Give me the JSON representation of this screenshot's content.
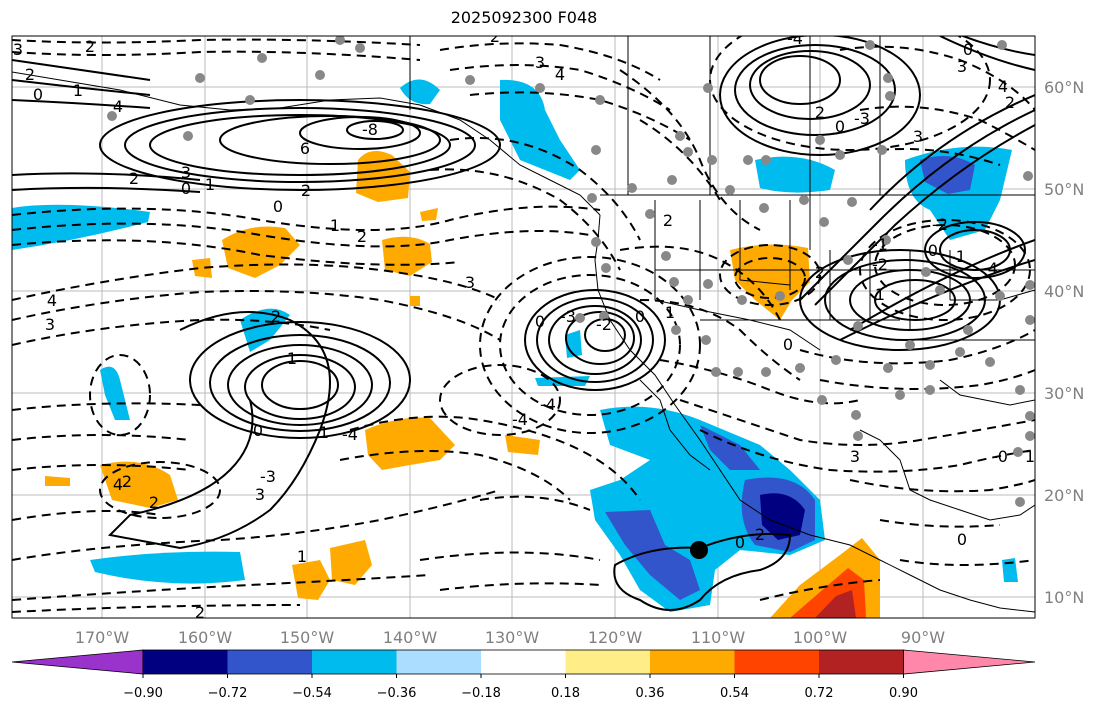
{
  "title": "2025092300 F048",
  "map": {
    "lon_ticks": [
      "170°W",
      "160°W",
      "150°W",
      "140°W",
      "130°W",
      "120°W",
      "110°W",
      "100°W",
      "90°W"
    ],
    "lat_ticks": [
      "60°N",
      "50°N",
      "40°N",
      "30°N",
      "20°N",
      "10°N"
    ],
    "contour_labels": [
      "3",
      "2",
      "0",
      "2",
      "1",
      "4",
      "6",
      "-8",
      "2",
      "3",
      "0",
      "1",
      "2",
      "0",
      "1",
      "2",
      "4",
      "3",
      "2",
      "1",
      "0",
      "1",
      "-4",
      "-3",
      "3",
      "4",
      "2",
      "2",
      "1",
      "2",
      "3",
      "-4",
      "-4",
      "0",
      "-3",
      "-2",
      "0",
      "1",
      "2",
      "3",
      "4",
      "2",
      "2",
      "0",
      "1",
      "-2",
      "-0",
      "-1",
      "-4",
      "-2",
      "2",
      "0",
      "-3",
      "3",
      "-4",
      "0",
      "3",
      "4",
      "2",
      "3",
      "0",
      "1",
      "0",
      "2",
      "-0",
      "-1"
    ],
    "marker": "storm-center"
  },
  "colorbar": {
    "colors": [
      "#9933cc",
      "#000080",
      "#3355cc",
      "#00bbee",
      "#aaddff",
      "#ffffff",
      "#ffee88",
      "#ffaa00",
      "#ff4400",
      "#b22222",
      "#ff88aa"
    ],
    "labels": [
      "−0.90",
      "−0.72",
      "−0.54",
      "−0.36",
      "−0.18",
      "0.18",
      "0.36",
      "0.54",
      "0.72",
      "0.90"
    ]
  }
}
